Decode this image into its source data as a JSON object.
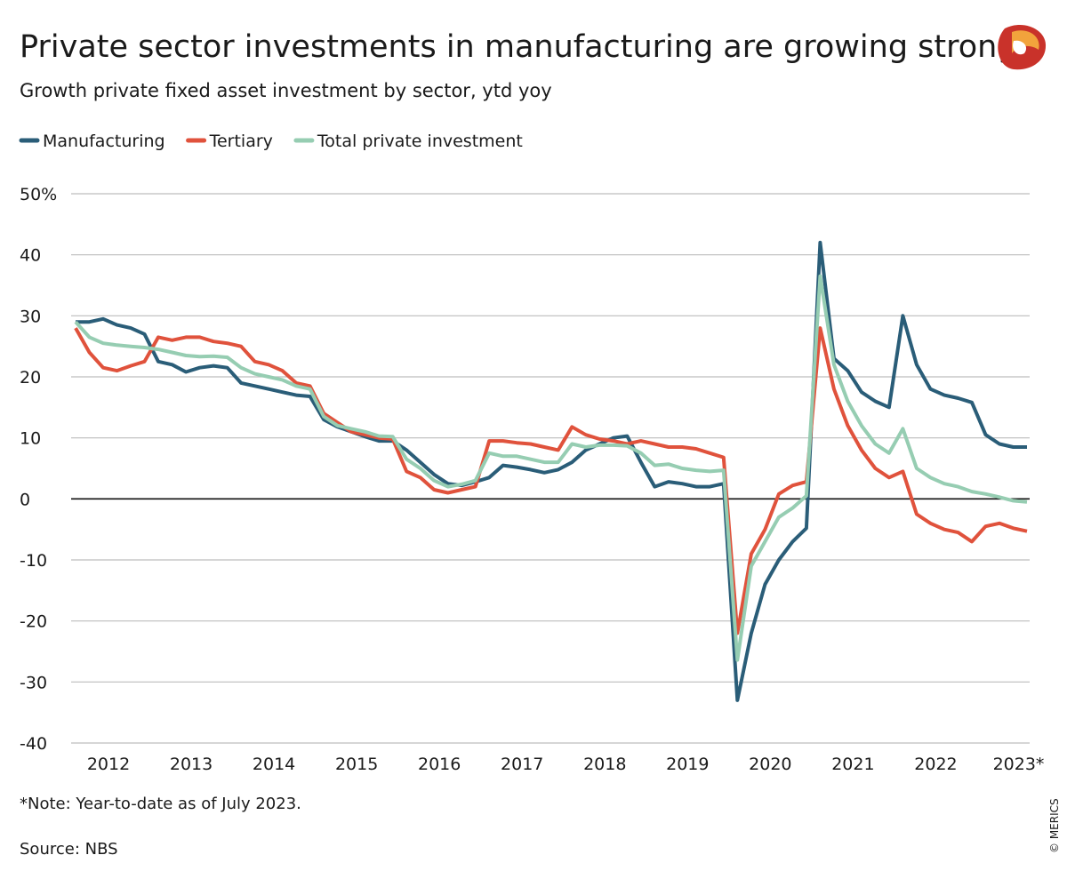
{
  "chart_data": {
    "type": "line",
    "title": "Private sector investments in manufacturing are growing strong",
    "subtitle": "Growth private fixed asset investment by sector, ytd yoy",
    "note": "*Note: Year-to-date as of July 2023.",
    "source": "Source: NBS",
    "credit": "© MERICS",
    "categories": [
      null,
      null,
      "2012",
      null,
      null,
      null,
      null,
      null,
      "2013",
      null,
      null,
      null,
      null,
      null,
      "2014",
      null,
      null,
      null,
      null,
      null,
      "2015",
      null,
      null,
      null,
      null,
      null,
      "2016",
      null,
      null,
      null,
      null,
      null,
      "2017",
      null,
      null,
      null,
      null,
      null,
      "2018",
      null,
      null,
      null,
      null,
      null,
      "2019",
      null,
      null,
      null,
      null,
      null,
      "2020",
      null,
      null,
      null,
      null,
      null,
      "2021",
      null,
      null,
      null,
      null,
      null,
      "2022",
      null,
      null,
      null,
      null,
      null,
      "2023*",
      null
    ],
    "series": [
      {
        "name": "Manufacturing",
        "color": "#2a5d78",
        "values": [
          29,
          29,
          29.5,
          28.5,
          28,
          27,
          22.5,
          22,
          20.8,
          21.5,
          21.8,
          21.5,
          19,
          18.5,
          18,
          17.5,
          17,
          16.8,
          13,
          11.8,
          11,
          10.2,
          9.5,
          9.5,
          8,
          6,
          4,
          2.5,
          2.2,
          2.8,
          3.5,
          5.5,
          5.2,
          4.8,
          4.3,
          4.8,
          6,
          8,
          9,
          10,
          10.3,
          6,
          2,
          2.8,
          2.5,
          2,
          2,
          2.5,
          -33,
          -22,
          -14,
          -10,
          -7,
          -4.8,
          42,
          23,
          21,
          17.5,
          16,
          15,
          30,
          22,
          18,
          17,
          16.5,
          15.8,
          10.5,
          9,
          8.5,
          8.5
        ]
      },
      {
        "name": "Tertiary",
        "color": "#e0523c",
        "values": [
          28,
          24,
          21.5,
          21,
          21.8,
          22.5,
          26.5,
          26,
          26.5,
          26.5,
          25.8,
          25.5,
          25,
          22.5,
          22,
          21,
          19,
          18.5,
          14,
          12.5,
          11,
          10.5,
          10,
          9.8,
          4.5,
          3.5,
          1.5,
          1,
          1.5,
          2,
          9.5,
          9.5,
          9.2,
          9,
          8.5,
          8,
          11.8,
          10.5,
          9.8,
          9.5,
          9,
          9.5,
          9,
          8.5,
          8.5,
          8.2,
          7.5,
          6.8,
          -22,
          -9,
          -5,
          0.8,
          2.2,
          2.8,
          28,
          18,
          12,
          8,
          5,
          3.5,
          4.5,
          -2.5,
          -4,
          -5,
          -5.5,
          -7,
          -4.5,
          -4,
          -4.8,
          -5.3
        ]
      },
      {
        "name": "Total private investment",
        "color": "#96cdb2",
        "values": [
          29,
          26.5,
          25.5,
          25.2,
          25,
          24.8,
          24.5,
          24,
          23.5,
          23.3,
          23.4,
          23.2,
          21.5,
          20.5,
          20,
          19.5,
          18.5,
          18,
          13.5,
          12,
          11.5,
          11,
          10.3,
          10.2,
          6.5,
          5,
          3,
          2,
          2.4,
          3,
          7.5,
          7,
          7,
          6.5,
          6,
          6,
          9,
          8.5,
          8.8,
          8.8,
          8.7,
          7.5,
          5.5,
          5.7,
          5,
          4.7,
          4.5,
          4.7,
          -26.4,
          -11,
          -7,
          -3,
          -1.5,
          0.5,
          36.5,
          22,
          16,
          12,
          9,
          7.5,
          11.5,
          5,
          3.5,
          2.5,
          2,
          1.2,
          0.8,
          0.3,
          -0.3,
          -0.5
        ]
      }
    ],
    "ylim": [
      -40,
      50
    ],
    "yticks": [
      -40,
      -30,
      -20,
      -10,
      0,
      10,
      20,
      30,
      40,
      {
        "value": 50,
        "label": "50%"
      }
    ],
    "grid": true
  }
}
